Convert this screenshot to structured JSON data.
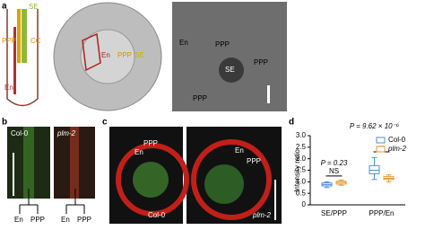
{
  "panels": {
    "a": {
      "label": "a",
      "schematic": [
        "SE",
        "PPP",
        "CC",
        "En"
      ],
      "section": [
        "En",
        "PPP",
        "SE"
      ],
      "tem": [
        "En",
        "PPP",
        "PPP",
        "SE",
        "PPP"
      ]
    },
    "b": {
      "label": "b",
      "genotypes": [
        "Col-0",
        "plm-2"
      ],
      "cells": [
        "En",
        "PPP",
        "En",
        "PPP"
      ]
    },
    "c": {
      "label": "c",
      "genotypes": [
        "Col-0",
        "plm-2"
      ],
      "cells": [
        "En",
        "PPP",
        "En",
        "PPP"
      ]
    },
    "d": {
      "label": "d"
    }
  },
  "chart_data": {
    "type": "box",
    "ylabel": "Intensity ratio",
    "categories": [
      "SE/PPP",
      "PPP/En"
    ],
    "ylim": [
      0,
      3.0
    ],
    "yticks": [
      0,
      {
        "value": 0.5,
        "label": "0.5"
      },
      {
        "value": 1.0,
        "label": "1.0"
      },
      {
        "value": 1.5,
        "label": "1.5"
      },
      {
        "value": 2.0,
        "label": "2.0"
      },
      {
        "value": 2.5,
        "label": "2.5"
      },
      {
        "value": 3.0,
        "label": "3.0"
      }
    ],
    "legend": "upper right",
    "series": [
      {
        "name": "Col-0",
        "color": "#4a90d9",
        "values": [
          {
            "low": 0.75,
            "q1": 0.82,
            "median": 0.88,
            "q3": 0.95,
            "high": 1.0
          },
          {
            "low": 1.1,
            "q1": 1.35,
            "median": 1.5,
            "q3": 1.7,
            "high": 2.05
          }
        ]
      },
      {
        "name": "plm-2",
        "color": "#e8962e",
        "values": [
          {
            "low": 0.85,
            "q1": 0.9,
            "median": 0.97,
            "q3": 1.02,
            "high": 1.08
          },
          {
            "low": 1.0,
            "q1": 1.1,
            "median": 1.15,
            "q3": 1.22,
            "high": 1.3
          }
        ]
      }
    ],
    "annotations": [
      "NS",
      "P = 0.23",
      "**",
      "P = 9.62 × 10⁻⁶"
    ]
  }
}
